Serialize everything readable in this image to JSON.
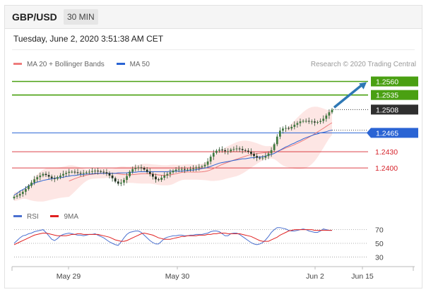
{
  "header": {
    "symbol": "GBP/USD",
    "timeframe": "30 MIN"
  },
  "timestamp": "Tuesday, June 2, 2020 3:51:38 AM CET",
  "legend": {
    "bollinger": "MA 20 + Bollinger Bands",
    "ma50": "MA 50",
    "rsi": "RSI",
    "ma9": "9MA"
  },
  "credit": "Research © 2020 Trading Central",
  "colors": {
    "resistance": "#4aa012",
    "support": "#d6222a",
    "ma50": "#2a64d4",
    "bollinger": "#ee7c7c",
    "band_fill": "#fde3e1",
    "candle": "#2f4f2f",
    "current": "#2f2f2f",
    "arrow": "#2e78b5",
    "rsi": "#4a70d0",
    "ma9": "#e02020"
  },
  "chart_data": [
    {
      "type": "candlestick",
      "x_ticks": [
        "May 29",
        "May 30",
        "Jun 2",
        "Jun 15"
      ],
      "ylim": [
        1.2335,
        1.2575
      ],
      "levels": [
        {
          "price": "1.2560",
          "value": 1.256,
          "kind": "resistance"
        },
        {
          "price": "1.2535",
          "value": 1.2535,
          "kind": "resistance"
        },
        {
          "price": "1.2508",
          "value": 1.2508,
          "kind": "current"
        },
        {
          "price": "1.2465",
          "value": 1.2465,
          "kind": "pivot"
        },
        {
          "price": "1.2430",
          "value": 1.243,
          "kind": "support"
        },
        {
          "price": "1.2400",
          "value": 1.24,
          "kind": "support"
        }
      ],
      "close": [
        1.2347,
        1.2349,
        1.2352,
        1.2356,
        1.2361,
        1.2367,
        1.2373,
        1.2379,
        1.2383,
        1.2386,
        1.2389,
        1.2387,
        1.2384,
        1.2381,
        1.238,
        1.2383,
        1.2386,
        1.2389,
        1.2391,
        1.2393,
        1.2393,
        1.2392,
        1.2391,
        1.239,
        1.2391,
        1.2392,
        1.2393,
        1.2394,
        1.2395,
        1.2394,
        1.2393,
        1.2392,
        1.239,
        1.2386,
        1.2381,
        1.2375,
        1.2371,
        1.2373,
        1.2378,
        1.2385,
        1.2393,
        1.2398,
        1.24,
        1.2401,
        1.24,
        1.2397,
        1.2393,
        1.2389,
        1.2384,
        1.2379,
        1.2378,
        1.2382,
        1.2386,
        1.2389,
        1.2392,
        1.2395,
        1.2397,
        1.2398,
        1.2398,
        1.2397,
        1.2397,
        1.2398,
        1.2399,
        1.2401,
        1.2402,
        1.2403,
        1.2406,
        1.2412,
        1.2421,
        1.2428,
        1.2432,
        1.2434,
        1.2433,
        1.2431,
        1.2431,
        1.2434,
        1.2435,
        1.2436,
        1.2435,
        1.2433,
        1.2432,
        1.243,
        1.2426,
        1.2422,
        1.2419,
        1.2418,
        1.2419,
        1.2422,
        1.2427,
        1.2433,
        1.2444,
        1.2458,
        1.2469,
        1.2473,
        1.2474,
        1.2473,
        1.2476,
        1.248,
        1.2483,
        1.2486,
        1.2487,
        1.2487,
        1.2486,
        1.2486,
        1.2484,
        1.2485,
        1.2487,
        1.2491,
        1.2497,
        1.2503,
        1.2508
      ],
      "ma50": [
        1.235,
        1.2353,
        1.2357,
        1.236,
        1.2363,
        1.2367,
        1.2369,
        1.2372,
        1.2374,
        1.2375,
        1.2377,
        1.2378,
        1.2379,
        1.238,
        1.2381,
        1.2382,
        1.2382,
        1.2383,
        1.2384,
        1.2385,
        1.2386,
        1.2386,
        1.2387,
        1.2388,
        1.2388,
        1.2389,
        1.2389,
        1.2389,
        1.239,
        1.239,
        1.239,
        1.239,
        1.239,
        1.239,
        1.239,
        1.239,
        1.2391,
        1.2391,
        1.2391,
        1.2391,
        1.2392,
        1.2392,
        1.2392,
        1.2393,
        1.2393,
        1.2393,
        1.2393,
        1.2393,
        1.2393,
        1.2393,
        1.2393,
        1.2393,
        1.2393,
        1.2393,
        1.2394,
        1.2394,
        1.2394,
        1.2394,
        1.2394,
        1.2395,
        1.2395,
        1.2396,
        1.2396,
        1.2397,
        1.2398,
        1.2399,
        1.24,
        1.2401,
        1.2403,
        1.2405,
        1.2407,
        1.2409,
        1.241,
        1.2411,
        1.2412,
        1.2413,
        1.2414,
        1.2415,
        1.2416,
        1.2417,
        1.2417,
        1.2418,
        1.2419,
        1.2419,
        1.242,
        1.242,
        1.2421,
        1.2422,
        1.2424,
        1.2425,
        1.2427,
        1.243,
        1.2433,
        1.2436,
        1.2439,
        1.2441,
        1.2444,
        1.2446,
        1.2449,
        1.2451,
        1.2454,
        1.2456,
        1.2458,
        1.246,
        1.2462,
        1.2463,
        1.2465,
        1.2466,
        1.2467,
        1.2469,
        1.247
      ],
      "ma20_start": 19
    },
    {
      "type": "line",
      "x_ticks": [
        "May 29",
        "May 30",
        "Jun 2",
        "Jun 15"
      ],
      "ylim": [
        20,
        82
      ],
      "y_ticks": [
        70,
        50,
        30
      ],
      "series": [
        {
          "name": "RSI",
          "values": [
            50,
            54,
            58,
            61,
            62,
            64,
            65,
            67,
            68,
            69,
            70,
            66,
            61,
            56,
            54,
            57,
            61,
            63,
            64,
            65,
            64,
            63,
            62,
            62,
            61,
            62,
            63,
            63,
            64,
            62,
            60,
            58,
            55,
            52,
            50,
            48,
            47,
            52,
            58,
            63,
            66,
            67,
            68,
            68,
            66,
            62,
            58,
            54,
            51,
            49,
            49,
            53,
            57,
            59,
            60,
            61,
            61,
            62,
            62,
            61,
            61,
            62,
            62,
            63,
            63,
            63,
            64,
            65,
            67,
            68,
            68,
            67,
            64,
            61,
            61,
            64,
            65,
            65,
            63,
            60,
            57,
            54,
            51,
            49,
            48,
            49,
            51,
            55,
            60,
            66,
            70,
            73,
            73,
            72,
            71,
            69,
            68,
            68,
            69,
            70,
            71,
            70,
            68,
            67,
            66,
            66,
            68,
            71,
            70,
            69,
            69
          ]
        },
        {
          "name": "9MA",
          "values": [
            48,
            50,
            52,
            54,
            56,
            58,
            60,
            62,
            63,
            64,
            65,
            65,
            64,
            63,
            62,
            61,
            61,
            61,
            61,
            62,
            63,
            63,
            64,
            64,
            63,
            63,
            63,
            63,
            63,
            63,
            62,
            61,
            60,
            59,
            57,
            55,
            54,
            53,
            53,
            54,
            56,
            58,
            60,
            62,
            64,
            65,
            64,
            63,
            62,
            60,
            58,
            57,
            56,
            56,
            56,
            57,
            58,
            59,
            60,
            60,
            61,
            61,
            61,
            61,
            62,
            62,
            62,
            63,
            63,
            64,
            64,
            65,
            65,
            65,
            64,
            64,
            64,
            64,
            64,
            63,
            62,
            61,
            60,
            58,
            56,
            54,
            53,
            53,
            53,
            55,
            57,
            59,
            62,
            64,
            66,
            68,
            69,
            70,
            70,
            70,
            70,
            70,
            70,
            70,
            69,
            69,
            69,
            69,
            69,
            69,
            69
          ]
        }
      ]
    }
  ]
}
